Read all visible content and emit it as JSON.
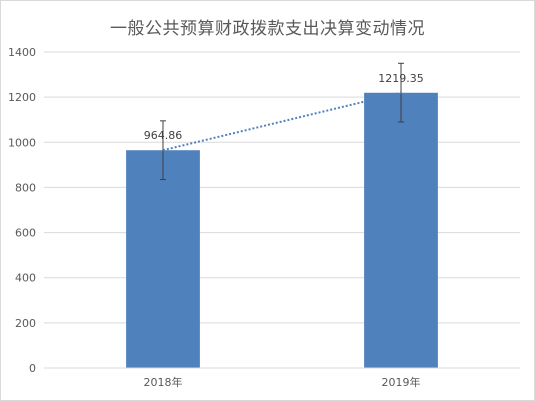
{
  "chart_data": {
    "type": "bar",
    "title": "一般公共预算财政拨款支出决算变动情况",
    "categories": [
      "2018年",
      "2019年"
    ],
    "values": [
      964.86,
      1219.35
    ],
    "data_labels": [
      "964.86",
      "1219.35"
    ],
    "error_bars": [
      [
        835,
        1095
      ],
      [
        1090,
        1350
      ]
    ],
    "trendline": "linear, dotted",
    "ylim": [
      0,
      1400
    ],
    "yticks": [
      "0",
      "200",
      "400",
      "600",
      "800",
      "1000",
      "1200",
      "1400"
    ],
    "grid": true,
    "legend": "none",
    "colors": {
      "bar": "#4f81bd",
      "grid": "#d9d9d9",
      "trend": "#4f81bd",
      "error": "#404040"
    }
  }
}
